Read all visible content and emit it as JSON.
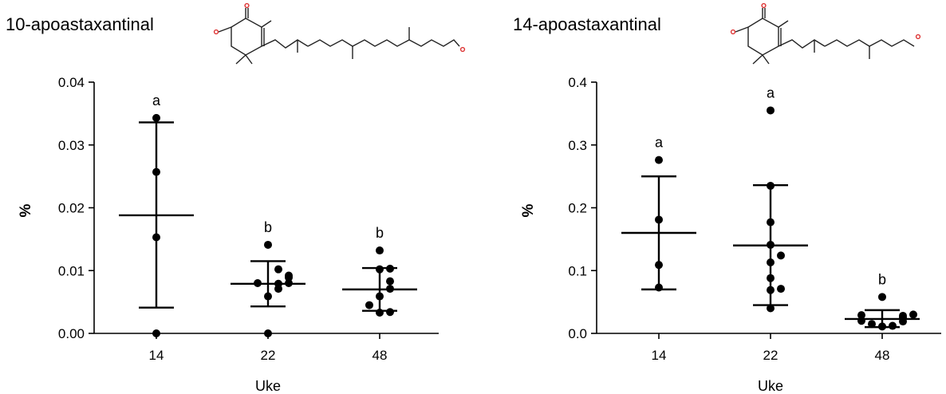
{
  "chart_data": [
    {
      "type": "scatter",
      "title": "10-apoastaxantinal",
      "xlabel": "Uke",
      "ylabel": "%",
      "categories": [
        "14",
        "22",
        "48"
      ],
      "ylim": [
        0,
        0.04
      ],
      "yticks": [
        "0.00",
        "0.01",
        "0.02",
        "0.03",
        "0.04"
      ],
      "groups": [
        {
          "x": "14",
          "points": [
            0.0343,
            0.0257,
            0.0153,
            0.0
          ],
          "mean": 0.0188,
          "sd_low": 0.0041,
          "sd_high": 0.0336,
          "letter": "a"
        },
        {
          "x": "22",
          "points": [
            0.0141,
            0.0102,
            0.0092,
            0.0089,
            0.008,
            0.008,
            0.0079,
            0.0071,
            0.0059,
            0.0
          ],
          "mean": 0.0079,
          "sd_low": 0.0043,
          "sd_high": 0.0115,
          "letter": "b"
        },
        {
          "x": "48",
          "points": [
            0.0132,
            0.0103,
            0.0102,
            0.0083,
            0.0071,
            0.0059,
            0.0045,
            0.0034,
            0.0033
          ],
          "mean": 0.007,
          "sd_low": 0.0036,
          "sd_high": 0.0104,
          "letter": "b"
        }
      ]
    },
    {
      "type": "scatter",
      "title": "14-apoastaxantinal",
      "xlabel": "Uke",
      "ylabel": "%",
      "categories": [
        "14",
        "22",
        "48"
      ],
      "ylim": [
        0,
        0.4
      ],
      "yticks": [
        "0.0",
        "0.1",
        "0.2",
        "0.3",
        "0.4"
      ],
      "groups": [
        {
          "x": "14",
          "points": [
            0.276,
            0.181,
            0.109,
            0.073
          ],
          "mean": 0.16,
          "sd_low": 0.07,
          "sd_high": 0.25,
          "letter": "a"
        },
        {
          "x": "22",
          "points": [
            0.355,
            0.235,
            0.177,
            0.141,
            0.124,
            0.113,
            0.088,
            0.069,
            0.071,
            0.04
          ],
          "mean": 0.14,
          "sd_low": 0.045,
          "sd_high": 0.236,
          "letter": "a"
        },
        {
          "x": "48",
          "points": [
            0.058,
            0.03,
            0.029,
            0.028,
            0.025,
            0.02,
            0.019,
            0.015,
            0.012,
            0.011
          ],
          "mean": 0.023,
          "sd_low": 0.01,
          "sd_high": 0.037,
          "letter": "b"
        }
      ]
    }
  ]
}
